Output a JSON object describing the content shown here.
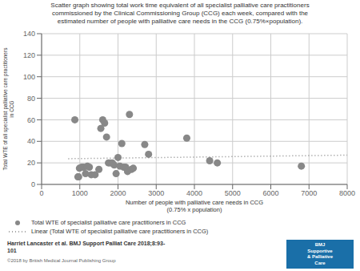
{
  "chart_data": {
    "type": "scatter",
    "title": "Scatter graph showing total work time equivalent of all specialist palliative care practitioners\ncommissioned by the Clinical Commissioning Group (CCG) each week, compared with the\nestimated number of people with palliative care needs in the CCG (0.75%×population).",
    "x_label": "Number of people with palliative care needs in CCG\n(0.75% x population)",
    "y_label": "Total WTE of all specialist palliative care practitioners\nin CCG",
    "xlim": [
      0,
      8000
    ],
    "ylim": [
      0,
      140
    ],
    "xticks": [
      0,
      1000,
      2000,
      3000,
      4000,
      5000,
      6000,
      7000,
      8000
    ],
    "yticks": [
      0,
      20,
      40,
      60,
      80,
      100,
      120,
      140
    ],
    "grid": true,
    "series": [
      {
        "name": "Total WTE of specialist palliative care practitioners in CCG",
        "type": "scatter",
        "marker": "circle",
        "color": "#888888",
        "x": [
          870,
          950,
          970,
          990,
          1050,
          1100,
          1150,
          1200,
          1250,
          1300,
          1400,
          1500,
          1550,
          1600,
          1650,
          1700,
          1750,
          1800,
          1850,
          1900,
          1950,
          2000,
          2050,
          2100,
          2150,
          2200,
          2250,
          2300,
          2350,
          2400,
          2700,
          2800,
          3800,
          4400,
          4600,
          6800
        ],
        "values": [
          60,
          7,
          7,
          15,
          16,
          16,
          10,
          17,
          16,
          9,
          9,
          14,
          52,
          60,
          57,
          44,
          20,
          20,
          20,
          18,
          10,
          25,
          17,
          38,
          16,
          16,
          12,
          65,
          14,
          15,
          37,
          28,
          43,
          22,
          20,
          17
        ]
      },
      {
        "name": "Linear (Total WTE of specialist palliative care practitioners in CCG)",
        "type": "line",
        "line_style": "dotted",
        "color": "#888888",
        "x": [
          700,
          8000
        ],
        "values": [
          23.88,
          27.18
        ]
      }
    ],
    "annotations": [
      {
        "text": "Harriet Lancaster et al. BMJ Support Palliat Care 2018;8:93-\n101"
      },
      {
        "text": "©2018 by British Medical Journal Publishing Group"
      },
      {
        "text": "BMJ\nSupportive\n& Palliative\nCare",
        "color": "#1a6fa8"
      }
    ]
  }
}
